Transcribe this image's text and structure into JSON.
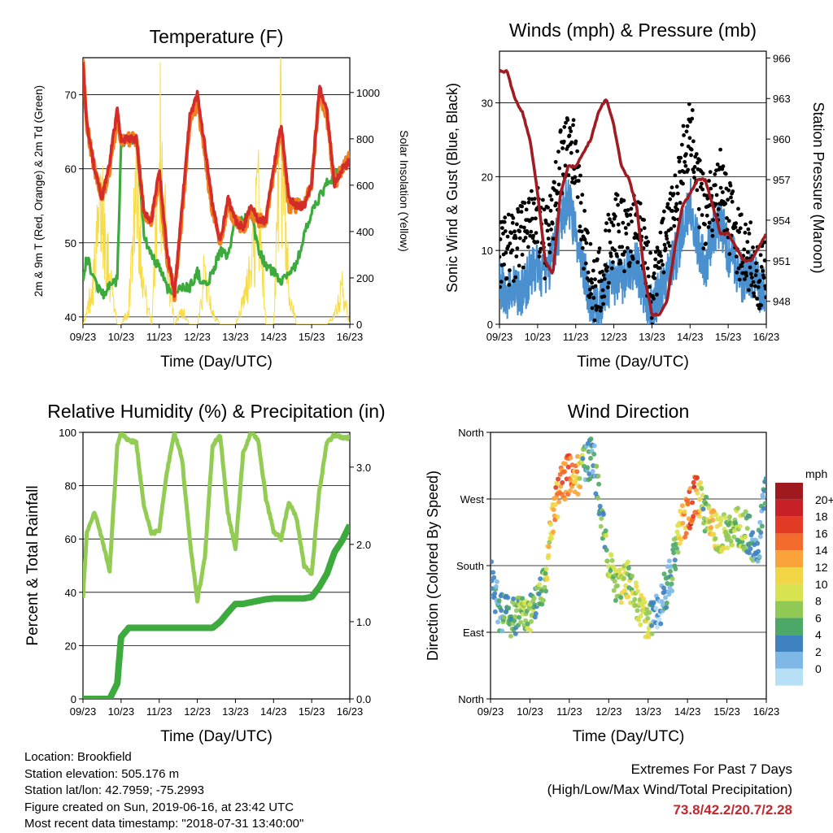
{
  "x_ticks": [
    "09/23",
    "10/23",
    "11/23",
    "12/23",
    "13/23",
    "14/23",
    "15/23",
    "16/23"
  ],
  "panels": {
    "temperature": {
      "title": "Temperature (F)",
      "xlabel": "Time (Day/UTC)",
      "ylabel_left": "2m & 9m T (Red, Orange) & 2m Td (Green)",
      "ylabel_right": "Solar Insolation (Yellow)",
      "left_ticks": [
        "40",
        "50",
        "60",
        "70"
      ],
      "right_ticks": [
        "0",
        "200",
        "400",
        "600",
        "800",
        "1000"
      ]
    },
    "winds": {
      "title": "Winds (mph) & Pressure (mb)",
      "xlabel": "Time (Day/UTC)",
      "ylabel_left": "Sonic Wind & Gust (Blue, Black)",
      "ylabel_right": "Station Pressure (Maroon)",
      "left_ticks": [
        "0",
        "10",
        "20",
        "30"
      ],
      "right_ticks": [
        "948",
        "951",
        "954",
        "957",
        "960",
        "963",
        "966"
      ]
    },
    "humidity": {
      "title": "Relative Humidity (%) & Precipitation (in)",
      "xlabel": "Time (Day/UTC)",
      "ylabel_left": "Percent & Total Rainfall",
      "left_ticks": [
        "0",
        "20",
        "40",
        "60",
        "80",
        "100"
      ],
      "right_ticks": [
        "0.0",
        "1.0",
        "2.0",
        "3.0"
      ]
    },
    "direction": {
      "title": "Wind Direction",
      "xlabel": "Time (Day/UTC)",
      "ylabel_left": "Direction (Colored By Speed)",
      "left_ticks": [
        "North",
        "East",
        "South",
        "West",
        "North"
      ],
      "legend_title": "mph",
      "legend_labels": [
        "20+",
        "18",
        "16",
        "14",
        "12",
        "10",
        "8",
        "6",
        "4",
        "2",
        "0"
      ],
      "legend_colors": [
        "#9e1a1e",
        "#c82027",
        "#e33a26",
        "#f26a2c",
        "#f9a33a",
        "#f2d545",
        "#d7e34f",
        "#91c955",
        "#4ca866",
        "#3f82c0",
        "#7fb8e6",
        "#b7dff5"
      ]
    }
  },
  "colors": {
    "temp_2m": "#d42b2b",
    "temp_9m": "#f07f1e",
    "dewpoint": "#3daa3d",
    "solar": "#f7dc4a",
    "wind": "#4a90cf",
    "gust": "#000000",
    "pressure": "#a01c22",
    "rh": "#92cc54",
    "rain": "#3daa3d"
  },
  "chart_data": [
    {
      "type": "line",
      "title": "Temperature (F)",
      "xlabel": "Time (Day/UTC)",
      "ylabel": "2m & 9m T (Red, Orange) & 2m Td (Green)",
      "y2label": "Solar Insolation (Yellow)",
      "x": [
        9,
        9.1,
        9.3,
        9.5,
        9.7,
        9.9,
        10,
        10.2,
        10.4,
        10.6,
        10.8,
        11,
        11.2,
        11.4,
        11.6,
        11.8,
        12,
        12.2,
        12.4,
        12.6,
        12.8,
        13,
        13.2,
        13.4,
        13.6,
        13.8,
        14,
        14.2,
        14.4,
        14.6,
        14.8,
        15,
        15.2,
        15.4,
        15.6,
        15.8,
        16
      ],
      "ylim": [
        39,
        75
      ],
      "y2lim": [
        0,
        1150
      ],
      "series": [
        {
          "name": "2m T",
          "values": [
            74,
            66,
            60,
            56,
            61,
            68,
            64,
            64,
            64,
            54,
            53,
            60,
            49,
            43,
            55,
            67,
            70,
            63,
            55,
            50,
            56,
            53,
            52,
            55,
            53,
            53,
            60,
            66,
            56,
            55,
            55,
            58,
            71,
            68,
            58,
            60,
            61
          ]
        },
        {
          "name": "9m T",
          "values": [
            74,
            66,
            60,
            56,
            60,
            67,
            64,
            64,
            64,
            54,
            53,
            59,
            48,
            43,
            54,
            66,
            69,
            62,
            54,
            50,
            55,
            53,
            52,
            54,
            53,
            53,
            59,
            65,
            55,
            55,
            55,
            58,
            70,
            67,
            58,
            60,
            62
          ]
        },
        {
          "name": "2m Td",
          "values": [
            45,
            48,
            45,
            43,
            44,
            45,
            63,
            64,
            64,
            51,
            48,
            47,
            44,
            43,
            44,
            44,
            46,
            44,
            46,
            49,
            48,
            53,
            53,
            54,
            49,
            47,
            46,
            45,
            46,
            47,
            51,
            54,
            56,
            58,
            59,
            60,
            61
          ]
        },
        {
          "name": "Solar Insolation",
          "values": [
            0,
            60,
            300,
            700,
            300,
            0,
            0,
            80,
            900,
            200,
            0,
            1050,
            400,
            0,
            80,
            0,
            0,
            300,
            60,
            0,
            0,
            0,
            120,
            300,
            700,
            0,
            0,
            1100,
            200,
            0,
            0,
            0,
            0,
            0,
            50,
            200,
            0
          ]
        }
      ]
    },
    {
      "type": "line",
      "title": "Winds (mph) & Pressure (mb)",
      "xlabel": "Time (Day/UTC)",
      "ylabel": "Sonic Wind & Gust (Blue, Black)",
      "y2label": "Station Pressure (Maroon)",
      "x": [
        9,
        9.2,
        9.4,
        9.6,
        9.8,
        10,
        10.2,
        10.4,
        10.6,
        10.8,
        11,
        11.2,
        11.4,
        11.6,
        11.8,
        12,
        12.2,
        12.4,
        12.6,
        12.8,
        13,
        13.2,
        13.4,
        13.6,
        13.8,
        14,
        14.2,
        14.4,
        14.6,
        14.8,
        15,
        15.2,
        15.4,
        15.6,
        15.8,
        16
      ],
      "ylim": [
        0,
        37
      ],
      "y2lim": [
        946.3,
        966.5
      ],
      "series": [
        {
          "name": "Sonic Wind",
          "values": [
            6,
            4,
            5,
            4,
            7,
            8,
            6,
            9,
            14,
            17,
            12,
            8,
            3,
            2,
            5,
            6,
            6,
            7,
            8,
            4,
            2,
            4,
            6,
            9,
            12,
            17,
            11,
            8,
            12,
            14,
            10,
            8,
            6,
            7,
            5,
            4
          ]
        },
        {
          "name": "Gust",
          "values": [
            10,
            10,
            11,
            12,
            15,
            14,
            11,
            15,
            22,
            25,
            22,
            12,
            6,
            5,
            9,
            13,
            12,
            12,
            13,
            11,
            4,
            8,
            13,
            16,
            22,
            27,
            19,
            14,
            17,
            20,
            15,
            12,
            10,
            9,
            7,
            7
          ]
        },
        {
          "name": "Station Pressure",
          "values": [
            965,
            965,
            963,
            962,
            960,
            956,
            951,
            950,
            956,
            958,
            958,
            959,
            960,
            962,
            963,
            961,
            958,
            957,
            955,
            950,
            947,
            947,
            948,
            952,
            955,
            956,
            957,
            957,
            955,
            953,
            953,
            952,
            951,
            951,
            952,
            953
          ]
        }
      ]
    },
    {
      "type": "line",
      "title": "Relative Humidity (%) & Precipitation (in)",
      "xlabel": "Time (Day/UTC)",
      "ylabel": "Percent & Total Rainfall",
      "x": [
        9,
        9.1,
        9.3,
        9.5,
        9.7,
        9.9,
        10,
        10.2,
        10.4,
        10.6,
        10.8,
        11,
        11.2,
        11.4,
        11.6,
        11.8,
        12,
        12.2,
        12.4,
        12.6,
        12.8,
        13,
        13.2,
        13.4,
        13.6,
        13.8,
        14,
        14.2,
        14.4,
        14.6,
        14.8,
        15,
        15.2,
        15.4,
        15.6,
        15.8,
        16
      ],
      "ylim": [
        0,
        100
      ],
      "y2lim": [
        0,
        3.45
      ],
      "series": [
        {
          "name": "Relative Humidity",
          "values": [
            38,
            62,
            70,
            60,
            48,
            95,
            100,
            97,
            96,
            72,
            62,
            63,
            85,
            100,
            90,
            60,
            37,
            53,
            95,
            99,
            70,
            56,
            92,
            100,
            97,
            75,
            63,
            60,
            74,
            68,
            50,
            47,
            78,
            96,
            99,
            98,
            98
          ]
        },
        {
          "name": "Total Rainfall",
          "values": [
            0,
            0,
            0,
            0,
            0,
            0.2,
            0.8,
            0.92,
            0.92,
            0.92,
            0.92,
            0.92,
            0.92,
            0.92,
            0.92,
            0.92,
            0.92,
            0.92,
            0.92,
            1.0,
            1.12,
            1.23,
            1.23,
            1.25,
            1.27,
            1.29,
            1.3,
            1.3,
            1.3,
            1.3,
            1.3,
            1.32,
            1.45,
            1.62,
            1.9,
            2.05,
            2.25
          ]
        }
      ]
    },
    {
      "type": "scatter",
      "title": "Wind Direction",
      "xlabel": "Time (Day/UTC)",
      "ylabel": "Direction (Colored By Speed)",
      "y_labels": [
        "North",
        "East",
        "South",
        "West",
        "North"
      ],
      "ylim": [
        0,
        360
      ],
      "x": [
        9,
        9.2,
        9.4,
        9.6,
        9.8,
        10,
        10.2,
        10.4,
        10.6,
        10.8,
        11,
        11.2,
        11.4,
        11.6,
        11.8,
        12,
        12.2,
        12.4,
        12.6,
        12.8,
        13,
        13.2,
        13.4,
        13.6,
        13.8,
        14,
        14.2,
        14.4,
        14.6,
        14.8,
        15,
        15.2,
        15.4,
        15.6,
        15.8,
        16
      ],
      "series": [
        {
          "name": "Direction",
          "values": [
            180,
            120,
            112,
            110,
            118,
            115,
            130,
            170,
            250,
            290,
            305,
            300,
            315,
            330,
            250,
            180,
            150,
            160,
            155,
            120,
            100,
            110,
            140,
            170,
            230,
            250,
            275,
            260,
            230,
            220,
            225,
            230,
            230,
            220,
            200,
            300
          ]
        },
        {
          "name": "Speed",
          "values": [
            4,
            4,
            6,
            6,
            8,
            8,
            6,
            8,
            14,
            16,
            16,
            14,
            4,
            4,
            6,
            8,
            8,
            10,
            8,
            10,
            10,
            2,
            4,
            4,
            10,
            16,
            18,
            6,
            12,
            10,
            8,
            8,
            8,
            6,
            4,
            4
          ]
        }
      ]
    }
  ],
  "footer": {
    "location": "Location: Brookfield",
    "elevation": "Station elevation: 505.176 m",
    "latlon": "Station lat/lon: 42.7959; -75.2993",
    "created": "Figure created on Sun, 2019-06-16, at 23:42 UTC",
    "recent": "Most recent data timestamp: \"2018-07-31 13:40:00\"",
    "extremes_title": "Extremes For Past 7 Days",
    "extremes_subtitle": "(High/Low/Max Wind/Total Precipitation)",
    "extremes_values": "73.8/42.2/20.7/2.28"
  }
}
